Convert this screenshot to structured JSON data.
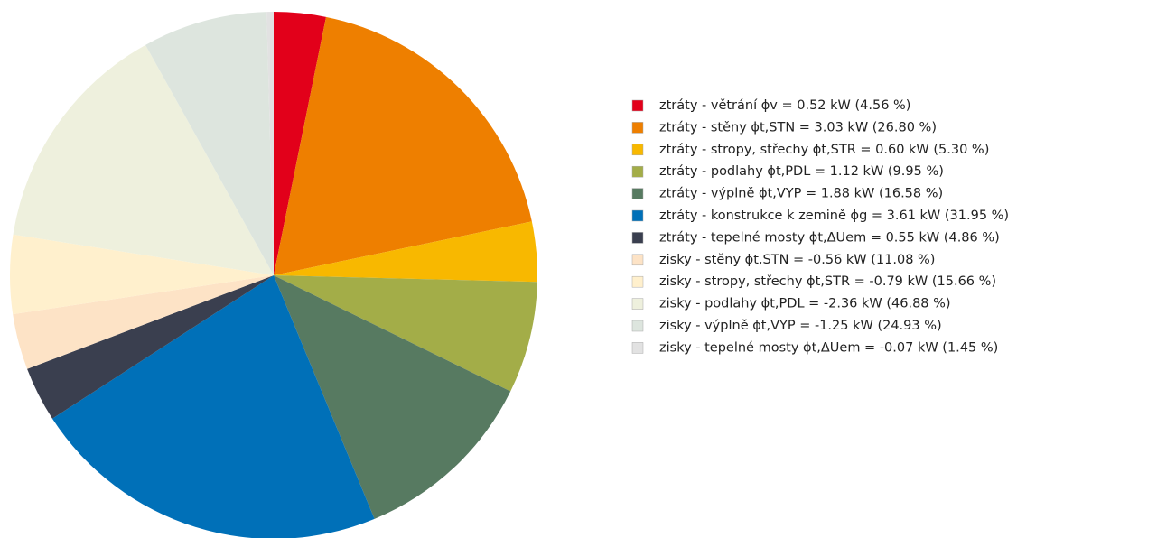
{
  "chart_data": {
    "type": "pie",
    "categories": [
      "ztráty - větrání ϕv = 0.52 kW (4.56 %)",
      "ztráty - stěny ϕt,STN = 3.03 kW (26.80 %)",
      "ztráty - stropy, střechy ϕt,STR = 0.60 kW (5.30 %)",
      "ztráty - podlahy ϕt,PDL = 1.12 kW (9.95 %)",
      "ztráty - výplně ϕt,VYP = 1.88 kW (16.58 %)",
      "ztráty - konstrukce k zemině ϕg = 3.61 kW (31.95 %)",
      "ztráty - tepelné mosty ϕt,ΔUem = 0.55 kW (4.86 %)",
      "zisky - stěny ϕt,STN = -0.56 kW (11.08 %)",
      "zisky - stropy, střechy ϕt,STR = -0.79 kW (15.66 %)",
      "zisky - podlahy ϕt,PDL = -2.36 kW (46.88 %)",
      "zisky - výplně ϕt,VYP = -1.25 kW (24.93 %)",
      "zisky - tepelné mosty ϕt,ΔUem = -0.07 kW (1.45 %)"
    ],
    "values": [
      0.52,
      3.03,
      0.6,
      1.12,
      1.88,
      3.61,
      0.55,
      -0.56,
      -0.79,
      -2.36,
      -1.25,
      -0.07
    ],
    "colors": [
      "#e2001a",
      "#ee7f00",
      "#f8b800",
      "#a3ad48",
      "#577a61",
      "#0070b8",
      "#3a3f4f",
      "#fde3c6",
      "#fff0cd",
      "#eef0dd",
      "#dde5de",
      "#e2e2e2"
    ],
    "legend": "right"
  }
}
